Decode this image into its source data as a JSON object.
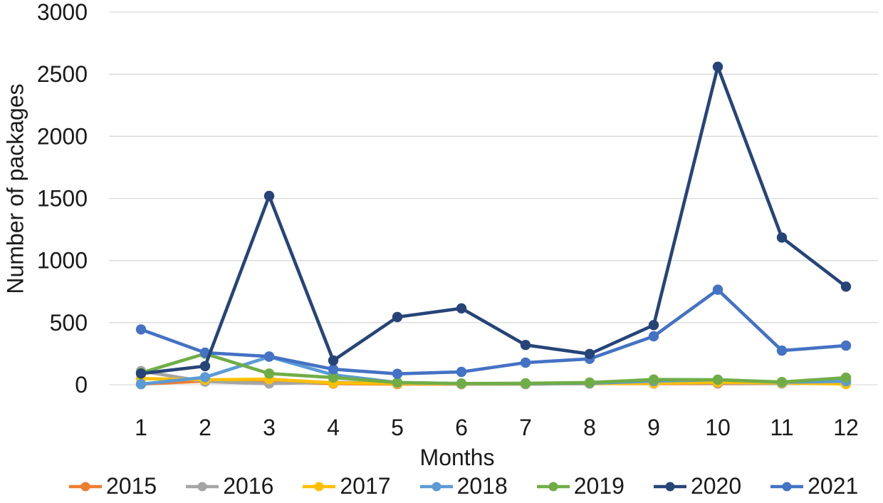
{
  "chart_data": {
    "type": "line",
    "title": "",
    "xlabel": "Months",
    "ylabel": "Number of packages",
    "x": [
      1,
      2,
      3,
      4,
      5,
      6,
      7,
      8,
      9,
      10,
      11,
      12
    ],
    "ylim": [
      0,
      3000
    ],
    "yticks": [
      0,
      500,
      1000,
      1500,
      2000,
      2500,
      3000
    ],
    "grid": true,
    "legend_position": "bottom",
    "series": [
      {
        "name": "2015",
        "color": "#ED7D31",
        "values": [
          5,
          30,
          25,
          10,
          5,
          5,
          5,
          10,
          10,
          10,
          10,
          15
        ]
      },
      {
        "name": "2016",
        "color": "#A5A5A5",
        "values": [
          110,
          25,
          10,
          20,
          10,
          5,
          5,
          10,
          15,
          15,
          10,
          15
        ]
      },
      {
        "name": "2017",
        "color": "#FFC000",
        "values": [
          50,
          40,
          45,
          15,
          10,
          8,
          5,
          10,
          12,
          20,
          15,
          5
        ]
      },
      {
        "name": "2018",
        "color": "#5B9BD5",
        "values": [
          5,
          60,
          225,
          80,
          18,
          10,
          8,
          12,
          30,
          40,
          20,
          28
        ]
      },
      {
        "name": "2019",
        "color": "#70AD47",
        "values": [
          95,
          250,
          90,
          58,
          18,
          10,
          12,
          18,
          42,
          40,
          22,
          57
        ]
      },
      {
        "name": "2020",
        "color": "#264478",
        "values": [
          90,
          150,
          1520,
          195,
          545,
          615,
          320,
          248,
          480,
          2560,
          1185,
          790
        ]
      },
      {
        "name": "2021",
        "color": "#4472C4",
        "values": [
          445,
          258,
          228,
          125,
          88,
          103,
          178,
          208,
          390,
          765,
          275,
          315
        ]
      }
    ],
    "draw_order": [
      0,
      1,
      2,
      3,
      4,
      6,
      5
    ],
    "gridline_color": "#D9D9D9",
    "text_color": "#1a1a1a"
  }
}
